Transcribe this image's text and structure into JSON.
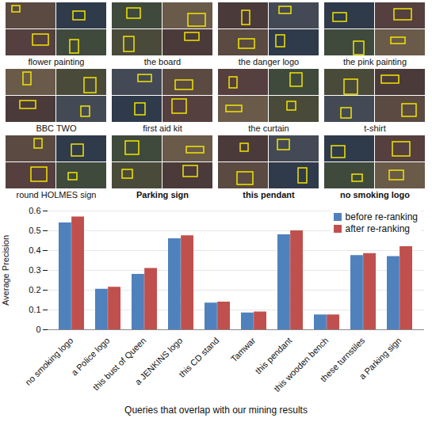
{
  "image_grid": {
    "captions": [
      {
        "text": "flower painting",
        "bold": false
      },
      {
        "text": "the board",
        "bold": false
      },
      {
        "text": "the danger logo",
        "bold": false
      },
      {
        "text": "the pink painting",
        "bold": false
      },
      {
        "text": "BBC TWO",
        "bold": false
      },
      {
        "text": "first aid kit",
        "bold": false
      },
      {
        "text": "the curtain",
        "bold": false
      },
      {
        "text": "t-shirt",
        "bold": false
      },
      {
        "text": "round HOLMES sign",
        "bold": false
      },
      {
        "text": "Parking sign",
        "bold": true
      },
      {
        "text": "this pendant",
        "bold": true
      },
      {
        "text": "no smoking logo",
        "bold": true
      }
    ]
  },
  "chart_data": {
    "type": "bar",
    "x_label": "Queries that overlap with our mining results",
    "y_label": "Average Precision",
    "categories": [
      "no smoking logo",
      "a Police logo",
      "this bust of Queen",
      "a JENKINS logo",
      "this CD stand",
      "Tamwar",
      "this pendant",
      "this wooden bench",
      "these turnstiles",
      "a Parking sign"
    ],
    "series": [
      {
        "name": "before re-ranking",
        "color": "#4f81bd",
        "values": [
          0.54,
          0.205,
          0.28,
          0.46,
          0.135,
          0.085,
          0.48,
          0.075,
          0.375,
          0.37
        ]
      },
      {
        "name": "after re-ranking",
        "color": "#c0504d",
        "values": [
          0.57,
          0.215,
          0.31,
          0.475,
          0.14,
          0.09,
          0.5,
          0.075,
          0.385,
          0.42
        ]
      }
    ],
    "ylim": [
      0,
      0.6
    ],
    "yticks": [
      0,
      0.1,
      0.2,
      0.3,
      0.4,
      0.5,
      0.6
    ],
    "grid": true,
    "legend": "top-right"
  }
}
